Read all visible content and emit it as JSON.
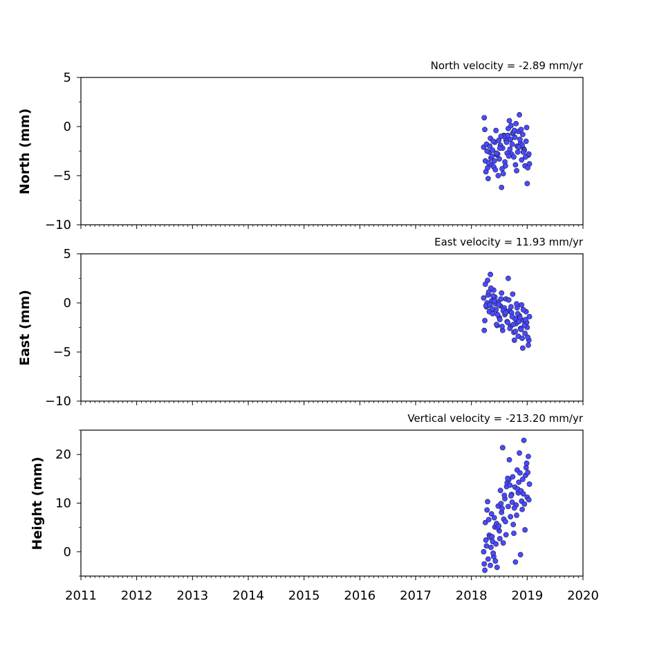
{
  "chart_data": [
    {
      "type": "scatter",
      "title": "North velocity = -2.89 mm/yr",
      "ylabel": "North (mm)",
      "xlabel": "",
      "xlim": [
        2011,
        2020
      ],
      "ylim": [
        -10,
        5
      ],
      "xticks": [
        "2011",
        "2012",
        "2013",
        "2014",
        "2015",
        "2016",
        "2017",
        "2018",
        "2019",
        "2020"
      ],
      "yticks": [
        "−10",
        "−5",
        "0",
        "5"
      ],
      "ytick_values": [
        -10,
        -5,
        0,
        5
      ],
      "show_xtick_labels": false,
      "marker_color": "#4a4aff",
      "series": [
        {
          "x": [
            2018.22,
            2018.24,
            2018.25,
            2018.27,
            2018.29,
            2018.3,
            2018.32,
            2018.34,
            2018.36,
            2018.38,
            2018.4,
            2018.42,
            2018.44,
            2018.46,
            2018.48,
            2018.5,
            2018.52,
            2018.54,
            2018.56,
            2018.58,
            2018.6,
            2018.62,
            2018.64,
            2018.66,
            2018.68,
            2018.7,
            2018.72,
            2018.74,
            2018.76,
            2018.78,
            2018.8,
            2018.82,
            2018.84,
            2018.86,
            2018.88,
            2018.9,
            2018.92,
            2018.94,
            2018.96,
            2018.98,
            2019.0,
            2019.02,
            2019.04,
            2018.23,
            2018.28,
            2018.35,
            2018.43,
            2018.51,
            2018.59,
            2018.67,
            2018.75,
            2018.83,
            2018.91,
            2018.99,
            2018.26,
            2018.31,
            2018.39,
            2018.47,
            2018.55,
            2018.63,
            2018.71,
            2018.79,
            2018.87,
            2018.95,
            2019.03,
            2018.33,
            2018.41,
            2018.57,
            2018.65,
            2018.73,
            2018.81,
            2018.89,
            2018.97,
            2018.45,
            2018.53,
            2018.61,
            2018.69,
            2018.77,
            2018.85,
            2018.93,
            2019.01,
            2018.37,
            2018.49
          ],
          "y": [
            -2.1,
            -0.3,
            -3.5,
            -1.8,
            -4.2,
            -5.3,
            -2.6,
            -1.2,
            -3.9,
            -2.4,
            -4.1,
            -1.6,
            -0.4,
            -2.9,
            -5.0,
            -3.3,
            -1.9,
            -6.2,
            -2.2,
            -0.9,
            -3.6,
            -1.4,
            -2.7,
            -0.2,
            0.6,
            -1.3,
            -2.8,
            -0.7,
            -3.1,
            -1.1,
            0.3,
            -2.0,
            -0.5,
            1.2,
            -1.7,
            -3.4,
            -0.8,
            -2.3,
            -4.0,
            -1.5,
            -5.8,
            -2.9,
            -3.8,
            0.9,
            -2.5,
            -3.2,
            -4.4,
            -2.2,
            -1.0,
            -3.0,
            -0.6,
            -2.6,
            -1.9,
            -0.1,
            -4.6,
            -3.7,
            -1.5,
            -2.8,
            -4.3,
            -1.6,
            0.1,
            -3.9,
            -1.3,
            -2.4,
            -2.8,
            -2.0,
            -3.5,
            -4.8,
            -0.9,
            -1.8,
            -4.5,
            -0.3,
            -3.1,
            -2.7,
            -1.0,
            -4.0,
            -2.3,
            -0.4,
            -2.1,
            -2.6,
            -4.2,
            -3.0,
            -1.4
          ]
        }
      ]
    },
    {
      "type": "scatter",
      "title": "East velocity = 11.93 mm/yr",
      "ylabel": "East (mm)",
      "xlabel": "",
      "xlim": [
        2011,
        2020
      ],
      "ylim": [
        -10,
        5
      ],
      "xticks": [
        "2011",
        "2012",
        "2013",
        "2014",
        "2015",
        "2016",
        "2017",
        "2018",
        "2019",
        "2020"
      ],
      "yticks": [
        "−10",
        "−5",
        "0",
        "5"
      ],
      "ytick_values": [
        -10,
        -5,
        0,
        5
      ],
      "show_xtick_labels": false,
      "marker_color": "#4a4aff",
      "series": [
        {
          "x": [
            2018.22,
            2018.24,
            2018.25,
            2018.27,
            2018.29,
            2018.3,
            2018.32,
            2018.34,
            2018.36,
            2018.38,
            2018.4,
            2018.42,
            2018.44,
            2018.46,
            2018.48,
            2018.5,
            2018.52,
            2018.54,
            2018.56,
            2018.58,
            2018.6,
            2018.62,
            2018.64,
            2018.66,
            2018.68,
            2018.7,
            2018.72,
            2018.74,
            2018.76,
            2018.78,
            2018.8,
            2018.82,
            2018.84,
            2018.86,
            2018.88,
            2018.9,
            2018.92,
            2018.94,
            2018.96,
            2018.98,
            2019.0,
            2019.02,
            2019.04,
            2018.23,
            2018.28,
            2018.35,
            2018.43,
            2018.51,
            2018.59,
            2018.67,
            2018.75,
            2018.83,
            2018.91,
            2018.99,
            2018.26,
            2018.31,
            2018.39,
            2018.47,
            2018.55,
            2018.63,
            2018.71,
            2018.79,
            2018.87,
            2018.95,
            2019.03,
            2018.33,
            2018.41,
            2018.57,
            2018.65,
            2018.73,
            2018.81,
            2018.89,
            2018.97,
            2018.45,
            2018.53,
            2018.61,
            2018.69,
            2018.77,
            2018.85,
            2018.93,
            2019.01,
            2018.37,
            2018.49
          ],
          "y": [
            0.5,
            -1.8,
            1.9,
            -0.4,
            2.3,
            0.8,
            -0.9,
            2.9,
            0.2,
            -1.1,
            1.3,
            0.6,
            -0.7,
            -2.3,
            0.1,
            -1.5,
            -0.3,
            1.0,
            -2.8,
            -0.6,
            -1.2,
            0.4,
            -1.9,
            2.5,
            -0.8,
            -2.4,
            -1.0,
            0.9,
            -3.0,
            -1.6,
            -2.1,
            -0.5,
            -3.4,
            -1.3,
            -2.6,
            -0.2,
            -4.6,
            -1.8,
            -3.1,
            -0.9,
            -2.5,
            -4.3,
            -1.4,
            -2.8,
            0.0,
            1.5,
            -0.1,
            -1.7,
            -0.5,
            0.3,
            -2.2,
            -1.1,
            -3.6,
            -2.0,
            -0.3,
            1.1,
            0.7,
            -1.2,
            -2.4,
            -0.9,
            -0.4,
            -2.9,
            -1.5,
            -2.3,
            -3.8,
            -0.2,
            0.2,
            -0.8,
            -2.0,
            -1.4,
            -0.1,
            -2.7,
            -1.7,
            -2.2,
            0.4,
            -1.0,
            -2.6,
            -3.8,
            -1.9,
            -0.7,
            -3.5,
            -0.6,
            -0.2
          ]
        }
      ]
    },
    {
      "type": "scatter",
      "title": "Vertical velocity = -213.20 mm/yr",
      "ylabel": "Height (mm)",
      "xlabel": "",
      "xlim": [
        2011,
        2020
      ],
      "ylim": [
        -5,
        25
      ],
      "xticks": [
        "2011",
        "2012",
        "2013",
        "2014",
        "2015",
        "2016",
        "2017",
        "2018",
        "2019",
        "2020"
      ],
      "yticks": [
        "0",
        "10",
        "20"
      ],
      "ytick_values": [
        0,
        10,
        20
      ],
      "show_xtick_labels": true,
      "marker_color": "#4a4aff",
      "series": [
        {
          "x": [
            2018.22,
            2018.24,
            2018.25,
            2018.27,
            2018.29,
            2018.3,
            2018.32,
            2018.34,
            2018.36,
            2018.38,
            2018.4,
            2018.42,
            2018.44,
            2018.46,
            2018.48,
            2018.5,
            2018.52,
            2018.54,
            2018.56,
            2018.58,
            2018.6,
            2018.62,
            2018.64,
            2018.66,
            2018.68,
            2018.7,
            2018.72,
            2018.74,
            2018.76,
            2018.78,
            2018.8,
            2018.82,
            2018.84,
            2018.86,
            2018.88,
            2018.9,
            2018.92,
            2018.94,
            2018.96,
            2018.98,
            2019.0,
            2019.02,
            2019.04,
            2018.23,
            2018.28,
            2018.35,
            2018.43,
            2018.51,
            2018.59,
            2018.67,
            2018.75,
            2018.83,
            2018.91,
            2018.99,
            2018.26,
            2018.31,
            2018.39,
            2018.47,
            2018.55,
            2018.63,
            2018.71,
            2018.79,
            2018.87,
            2018.95,
            2019.03,
            2018.33,
            2018.41,
            2018.57,
            2018.65,
            2018.73,
            2018.81,
            2018.89,
            2018.97,
            2018.45,
            2018.53,
            2018.61,
            2018.69,
            2018.77,
            2018.85,
            2018.93,
            2019.01,
            2018.37,
            2018.49
          ],
          "y": [
            0.0,
            -3.8,
            6.0,
            1.2,
            10.3,
            -1.5,
            3.4,
            -2.8,
            7.8,
            2.1,
            -1.0,
            5.1,
            1.6,
            -3.2,
            9.4,
            4.3,
            12.6,
            8.1,
            21.4,
            6.7,
            10.9,
            3.5,
            14.2,
            9.3,
            18.9,
            7.2,
            11.8,
            15.4,
            3.8,
            13.3,
            9.6,
            16.8,
            12.1,
            20.3,
            -0.6,
            10.4,
            14.9,
            22.9,
            4.5,
            17.3,
            11.2,
            19.6,
            13.9,
            -2.5,
            8.6,
            0.9,
            -1.9,
            2.7,
            11.6,
            14.8,
            5.6,
            12.9,
            8.7,
            18.2,
            2.4,
            6.6,
            -0.3,
            4.9,
            8.9,
            13.4,
            11.5,
            -2.1,
            16.2,
            9.8,
            10.7,
            3.0,
            7.0,
            1.8,
            15.1,
            10.2,
            7.5,
            12.5,
            15.7,
            5.8,
            9.9,
            6.2,
            13.7,
            9.0,
            14.3,
            11.9,
            16.3,
            3.1,
            5.3
          ]
        }
      ]
    }
  ]
}
